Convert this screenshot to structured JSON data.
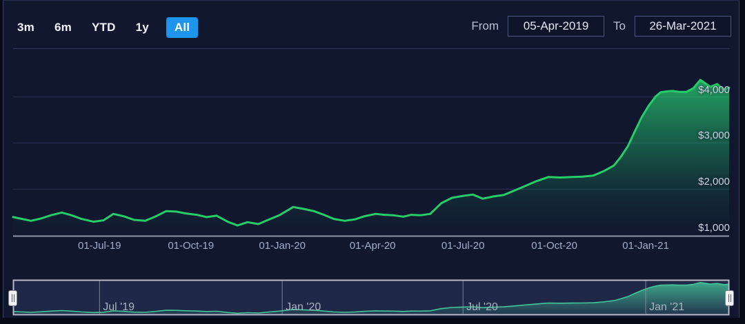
{
  "toolbar": {
    "range_buttons": [
      {
        "label": "3m",
        "selected": false
      },
      {
        "label": "6m",
        "selected": false
      },
      {
        "label": "YTD",
        "selected": false
      },
      {
        "label": "1y",
        "selected": false
      },
      {
        "label": "All",
        "selected": true
      }
    ],
    "from_label": "From",
    "from_value": "05-Apr-2019",
    "to_label": "To",
    "to_value": "26-Mar-2021"
  },
  "colors": {
    "selected_button": "#1d95ed",
    "line": "#27ce68",
    "navigator_line": "#3bd492",
    "background": "#11172f",
    "grid": "#2c3354",
    "axis_line": "#9298ac"
  },
  "chart_data": {
    "type": "area",
    "title": "",
    "xlabel": "",
    "ylabel": "",
    "x_range": [
      "2019-04-05",
      "2021-03-26"
    ],
    "ylim": [
      1000,
      4500
    ],
    "grid": true,
    "legend_position": "none",
    "y_ticks": [
      {
        "label": "$1,000",
        "value": 1000
      },
      {
        "label": "$2,000",
        "value": 2000
      },
      {
        "label": "$3,000",
        "value": 3000
      },
      {
        "label": "$4,000",
        "value": 4000
      }
    ],
    "x_ticks": [
      {
        "label": "01-Jul-19",
        "date": "2019-07-01"
      },
      {
        "label": "01-Oct-19",
        "date": "2019-10-01"
      },
      {
        "label": "01-Jan-20",
        "date": "2020-01-01"
      },
      {
        "label": "01-Apr-20",
        "date": "2020-04-01"
      },
      {
        "label": "01-Jul-20",
        "date": "2020-07-01"
      },
      {
        "label": "01-Oct-20",
        "date": "2020-10-01"
      },
      {
        "label": "01-Jan-21",
        "date": "2021-01-01"
      }
    ],
    "navigator_ticks": [
      {
        "label": "Jul '19",
        "date": "2019-07-01"
      },
      {
        "label": "Jan '20",
        "date": "2020-01-01"
      },
      {
        "label": "Jul '20",
        "date": "2020-07-01"
      },
      {
        "label": "Jan '21",
        "date": "2021-01-01"
      }
    ],
    "series": [
      {
        "points": [
          [
            "2019-04-05",
            1390
          ],
          [
            "2019-04-14",
            1350
          ],
          [
            "2019-04-23",
            1310
          ],
          [
            "2019-05-03",
            1360
          ],
          [
            "2019-05-13",
            1430
          ],
          [
            "2019-05-24",
            1490
          ],
          [
            "2019-06-03",
            1430
          ],
          [
            "2019-06-13",
            1350
          ],
          [
            "2019-06-25",
            1290
          ],
          [
            "2019-07-05",
            1320
          ],
          [
            "2019-07-15",
            1460
          ],
          [
            "2019-07-25",
            1410
          ],
          [
            "2019-08-05",
            1330
          ],
          [
            "2019-08-16",
            1310
          ],
          [
            "2019-08-26",
            1400
          ],
          [
            "2019-09-06",
            1520
          ],
          [
            "2019-09-16",
            1510
          ],
          [
            "2019-09-26",
            1470
          ],
          [
            "2019-10-07",
            1440
          ],
          [
            "2019-10-17",
            1390
          ],
          [
            "2019-10-27",
            1420
          ],
          [
            "2019-11-07",
            1290
          ],
          [
            "2019-11-17",
            1210
          ],
          [
            "2019-11-27",
            1280
          ],
          [
            "2019-12-08",
            1240
          ],
          [
            "2019-12-19",
            1340
          ],
          [
            "2019-12-29",
            1430
          ],
          [
            "2020-01-12",
            1610
          ],
          [
            "2020-01-22",
            1570
          ],
          [
            "2020-02-02",
            1520
          ],
          [
            "2020-02-12",
            1440
          ],
          [
            "2020-02-22",
            1350
          ],
          [
            "2020-03-04",
            1310
          ],
          [
            "2020-03-14",
            1340
          ],
          [
            "2020-03-24",
            1410
          ],
          [
            "2020-04-04",
            1460
          ],
          [
            "2020-04-13",
            1440
          ],
          [
            "2020-04-22",
            1430
          ],
          [
            "2020-05-02",
            1400
          ],
          [
            "2020-05-10",
            1440
          ],
          [
            "2020-05-19",
            1430
          ],
          [
            "2020-05-29",
            1460
          ],
          [
            "2020-06-09",
            1690
          ],
          [
            "2020-06-20",
            1810
          ],
          [
            "2020-07-01",
            1850
          ],
          [
            "2020-07-11",
            1880
          ],
          [
            "2020-07-21",
            1790
          ],
          [
            "2020-08-01",
            1840
          ],
          [
            "2020-08-11",
            1870
          ],
          [
            "2020-08-21",
            1960
          ],
          [
            "2020-09-01",
            2060
          ],
          [
            "2020-09-13",
            2170
          ],
          [
            "2020-09-25",
            2260
          ],
          [
            "2020-10-07",
            2250
          ],
          [
            "2020-10-19",
            2260
          ],
          [
            "2020-10-29",
            2270
          ],
          [
            "2020-11-09",
            2290
          ],
          [
            "2020-11-20",
            2390
          ],
          [
            "2020-11-30",
            2510
          ],
          [
            "2020-12-07",
            2700
          ],
          [
            "2020-12-14",
            2930
          ],
          [
            "2020-12-21",
            3250
          ],
          [
            "2020-12-28",
            3560
          ],
          [
            "2021-01-04",
            3810
          ],
          [
            "2021-01-11",
            4010
          ],
          [
            "2021-01-16",
            4100
          ],
          [
            "2021-01-22",
            4120
          ],
          [
            "2021-01-28",
            4130
          ],
          [
            "2021-02-04",
            4110
          ],
          [
            "2021-02-11",
            4110
          ],
          [
            "2021-02-18",
            4190
          ],
          [
            "2021-02-25",
            4370
          ],
          [
            "2021-03-03",
            4280
          ],
          [
            "2021-03-07",
            4220
          ],
          [
            "2021-03-14",
            4280
          ],
          [
            "2021-03-18",
            4200
          ],
          [
            "2021-03-21",
            4160
          ],
          [
            "2021-03-26",
            4200
          ]
        ]
      }
    ]
  }
}
